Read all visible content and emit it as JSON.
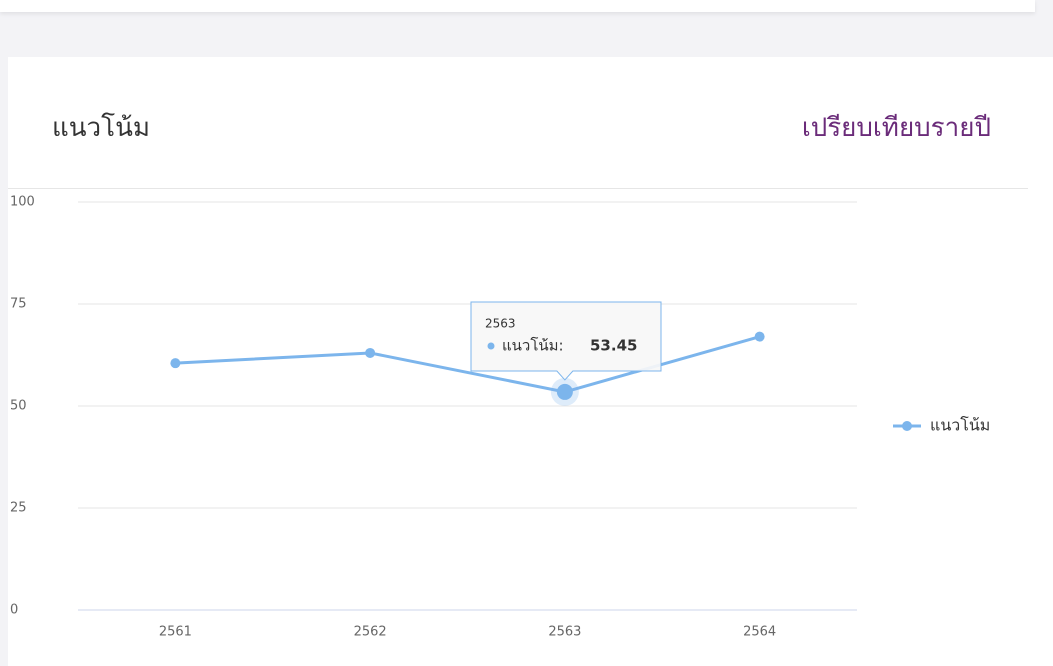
{
  "header": {
    "title": "แนวโน้ม",
    "link": "เปรียบเทียบรายปี"
  },
  "chart_data": {
    "type": "line",
    "categories": [
      "2561",
      "2562",
      "2563",
      "2564"
    ],
    "series": [
      {
        "name": "แนวโน้ม",
        "color": "#7cb5ec",
        "values": [
          60.5,
          63,
          53.45,
          67
        ]
      }
    ],
    "ylim": [
      0,
      100
    ],
    "yticks": [
      0,
      25,
      50,
      75,
      100
    ],
    "grid": true,
    "legend": "right",
    "tooltip": {
      "label": "แนวโน้ม:"
    }
  }
}
